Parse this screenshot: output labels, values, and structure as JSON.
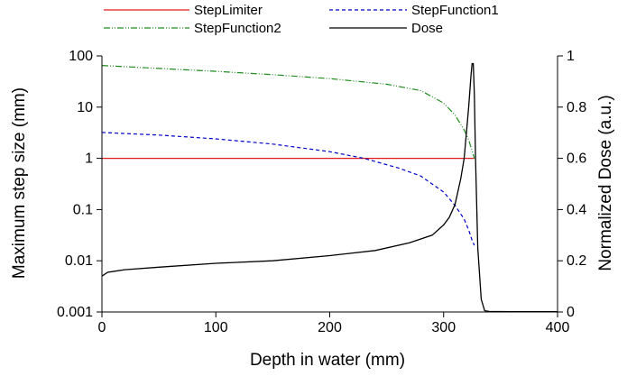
{
  "chart_data": {
    "type": "line",
    "xlabel": "Depth in water (mm)",
    "ylabel_left": "Maximum step size (mm)",
    "ylabel_right": "Normalized Dose (a.u.)",
    "xlim": [
      0,
      400
    ],
    "ylim_left": [
      0.001,
      100
    ],
    "ylim_left_scale": "log",
    "ylim_right": [
      0,
      1
    ],
    "grid": false,
    "legend_placement": "top",
    "x_ticks": [
      "0",
      "100",
      "200",
      "300",
      "400"
    ],
    "y_left_ticks": [
      "0.001",
      "0.01",
      "0.1",
      "1",
      "10",
      "100"
    ],
    "y_right_ticks": [
      "0",
      "0.2",
      "0.4",
      "0.6",
      "0.8",
      "1"
    ],
    "series": [
      {
        "name": "StepLimiter",
        "axis": "left",
        "color": "#e41a1c",
        "style": "solid",
        "x": [
          0,
          327
        ],
        "y": [
          1,
          1
        ]
      },
      {
        "name": "StepFunction1",
        "axis": "left",
        "color": "#0000cc",
        "style": "dashed",
        "x": [
          0,
          50,
          100,
          150,
          200,
          230,
          260,
          280,
          300,
          310,
          318,
          322,
          325,
          327
        ],
        "y": [
          3.2,
          2.85,
          2.4,
          1.9,
          1.35,
          1.0,
          0.65,
          0.45,
          0.22,
          0.12,
          0.065,
          0.04,
          0.025,
          0.02
        ]
      },
      {
        "name": "StepFunction2",
        "axis": "left",
        "color": "#228b22",
        "style": "dashdotdot",
        "x": [
          0,
          50,
          100,
          150,
          200,
          250,
          280,
          300,
          310,
          318,
          322,
          325,
          327
        ],
        "y": [
          65,
          57,
          50,
          43,
          36,
          28,
          21,
          12,
          7,
          3.6,
          2.3,
          1.4,
          1.0
        ]
      },
      {
        "name": "Dose",
        "axis": "right",
        "color": "#000000",
        "style": "solid",
        "x": [
          0,
          5,
          20,
          50,
          100,
          150,
          200,
          240,
          270,
          290,
          300,
          305,
          310,
          315,
          318,
          320,
          322,
          324,
          325,
          326,
          327,
          328,
          330,
          333,
          336,
          340,
          360,
          400
        ],
        "y": [
          0.14,
          0.155,
          0.165,
          0.175,
          0.19,
          0.2,
          0.22,
          0.24,
          0.27,
          0.3,
          0.34,
          0.37,
          0.42,
          0.52,
          0.6,
          0.7,
          0.8,
          0.92,
          0.97,
          0.97,
          0.85,
          0.6,
          0.25,
          0.05,
          0.005,
          0.002,
          0.001,
          0.001
        ]
      }
    ]
  }
}
